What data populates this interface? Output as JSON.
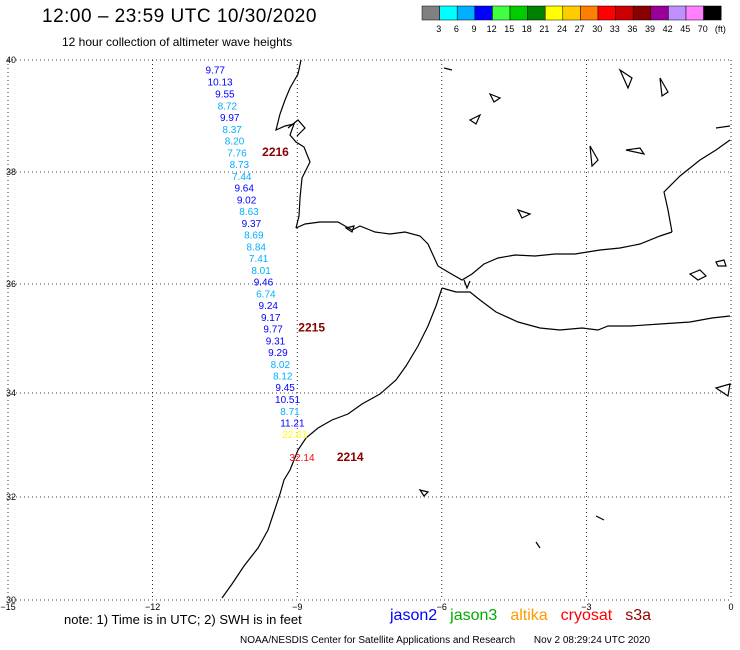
{
  "header": {
    "title": "12:00 – 23:59 UTC 10/30/2020",
    "subtitle": "12 hour collection of altimeter wave heights"
  },
  "colorbar": {
    "colors": [
      "#808080",
      "#00ffff",
      "#00b0ff",
      "#0000ff",
      "#40ff40",
      "#00cc00",
      "#008000",
      "#ffff00",
      "#ffcc00",
      "#ff8000",
      "#ff0000",
      "#cc0000",
      "#880000",
      "#990099",
      "#c090ff",
      "#ff80ff",
      "#000000"
    ],
    "labels": [
      "3",
      "6",
      "9",
      "12",
      "15",
      "18",
      "21",
      "24",
      "27",
      "30",
      "33",
      "36",
      "39",
      "42",
      "45",
      "70",
      "(ft)"
    ]
  },
  "axes": {
    "lat_labels": [
      "40",
      "38",
      "36",
      "34",
      "32",
      "30"
    ],
    "lon_labels": [
      "−15",
      "−12",
      "−9",
      "−6",
      "−3",
      "0"
    ]
  },
  "chart_data": {
    "type": "scatter",
    "description_units": "lon/lat degrees; values are SWH in feet",
    "xlim": [
      -15,
      0
    ],
    "ylim": [
      30,
      40
    ],
    "grid": true,
    "points": [
      {
        "lat": 39.82,
        "lon": -10.7,
        "value": "9.77",
        "color": "#0000ff"
      },
      {
        "lat": 39.6,
        "lon": -10.6,
        "value": "10.13",
        "color": "#0000ff"
      },
      {
        "lat": 39.38,
        "lon": -10.5,
        "value": "9.55",
        "color": "#0000ff"
      },
      {
        "lat": 39.16,
        "lon": -10.45,
        "value": "8.72",
        "color": "#00b0ff"
      },
      {
        "lat": 38.94,
        "lon": -10.4,
        "value": "9.97",
        "color": "#0000ff"
      },
      {
        "lat": 38.72,
        "lon": -10.35,
        "value": "8.37",
        "color": "#00b0ff"
      },
      {
        "lat": 38.51,
        "lon": -10.3,
        "value": "8.20",
        "color": "#00b0ff"
      },
      {
        "lat": 38.29,
        "lon": -10.25,
        "value": "7.76",
        "color": "#00b0ff"
      },
      {
        "lat": 38.07,
        "lon": -10.2,
        "value": "8.73",
        "color": "#00b0ff"
      },
      {
        "lat": 37.85,
        "lon": -10.15,
        "value": "7.44",
        "color": "#00b0ff"
      },
      {
        "lat": 37.64,
        "lon": -10.1,
        "value": "9.64",
        "color": "#0000ff"
      },
      {
        "lat": 37.42,
        "lon": -10.05,
        "value": "9.02",
        "color": "#0000ff"
      },
      {
        "lat": 37.2,
        "lon": -10.0,
        "value": "8.63",
        "color": "#00b0ff"
      },
      {
        "lat": 36.98,
        "lon": -9.95,
        "value": "9.37",
        "color": "#0000ff"
      },
      {
        "lat": 36.77,
        "lon": -9.9,
        "value": "8.69",
        "color": "#00b0ff"
      },
      {
        "lat": 36.55,
        "lon": -9.85,
        "value": "8.84",
        "color": "#00b0ff"
      },
      {
        "lat": 36.33,
        "lon": -9.8,
        "value": "7.41",
        "color": "#00b0ff"
      },
      {
        "lat": 36.11,
        "lon": -9.75,
        "value": "8.01",
        "color": "#00b0ff"
      },
      {
        "lat": 35.9,
        "lon": -9.7,
        "value": "9.46",
        "color": "#0000ff"
      },
      {
        "lat": 35.68,
        "lon": -9.65,
        "value": "6.74",
        "color": "#00b0ff"
      },
      {
        "lat": 35.46,
        "lon": -9.6,
        "value": "9.24",
        "color": "#0000ff"
      },
      {
        "lat": 35.24,
        "lon": -9.55,
        "value": "9.17",
        "color": "#0000ff"
      },
      {
        "lat": 35.03,
        "lon": -9.5,
        "value": "9.77",
        "color": "#0000ff"
      },
      {
        "lat": 34.81,
        "lon": -9.45,
        "value": "9.31",
        "color": "#0000ff"
      },
      {
        "lat": 34.59,
        "lon": -9.4,
        "value": "9.29",
        "color": "#0000ff"
      },
      {
        "lat": 34.37,
        "lon": -9.35,
        "value": "8.02",
        "color": "#00b0ff"
      },
      {
        "lat": 34.16,
        "lon": -9.3,
        "value": "8.12",
        "color": "#00b0ff"
      },
      {
        "lat": 33.94,
        "lon": -9.25,
        "value": "9.45",
        "color": "#0000ff"
      },
      {
        "lat": 33.72,
        "lon": -9.2,
        "value": "10.51",
        "color": "#0000ff"
      },
      {
        "lat": 33.5,
        "lon": -9.15,
        "value": "8.71",
        "color": "#00b0ff"
      },
      {
        "lat": 33.29,
        "lon": -9.1,
        "value": "11.21",
        "color": "#0000ff"
      },
      {
        "lat": 33.07,
        "lon": -9.05,
        "value": "22.61",
        "color": "#ffff00"
      },
      {
        "lat": 32.65,
        "lon": -8.9,
        "value": "32.14",
        "color": "#ff0000"
      }
    ],
    "pass_labels": [
      {
        "lat": 38.3,
        "lon": -9.45,
        "text": "2216"
      },
      {
        "lat": 35.05,
        "lon": -8.7,
        "text": "2215"
      },
      {
        "lat": 32.65,
        "lon": -7.9,
        "text": "2214"
      }
    ]
  },
  "note": "note:  1) Time is in UTC;  2) SWH is in feet",
  "legend": [
    {
      "text": "jason2",
      "color": "#0000ff"
    },
    {
      "text": "jason3",
      "color": "#00aa00"
    },
    {
      "text": "altika",
      "color": "#ff9900"
    },
    {
      "text": "cryosat",
      "color": "#ff0000"
    },
    {
      "text": "s3a",
      "color": "#990000"
    }
  ],
  "footer": {
    "credit": "NOAA/NESDIS Center for Satellite Applications and Research",
    "timestamp": "Nov  2 08:29:24 UTC 2020"
  }
}
